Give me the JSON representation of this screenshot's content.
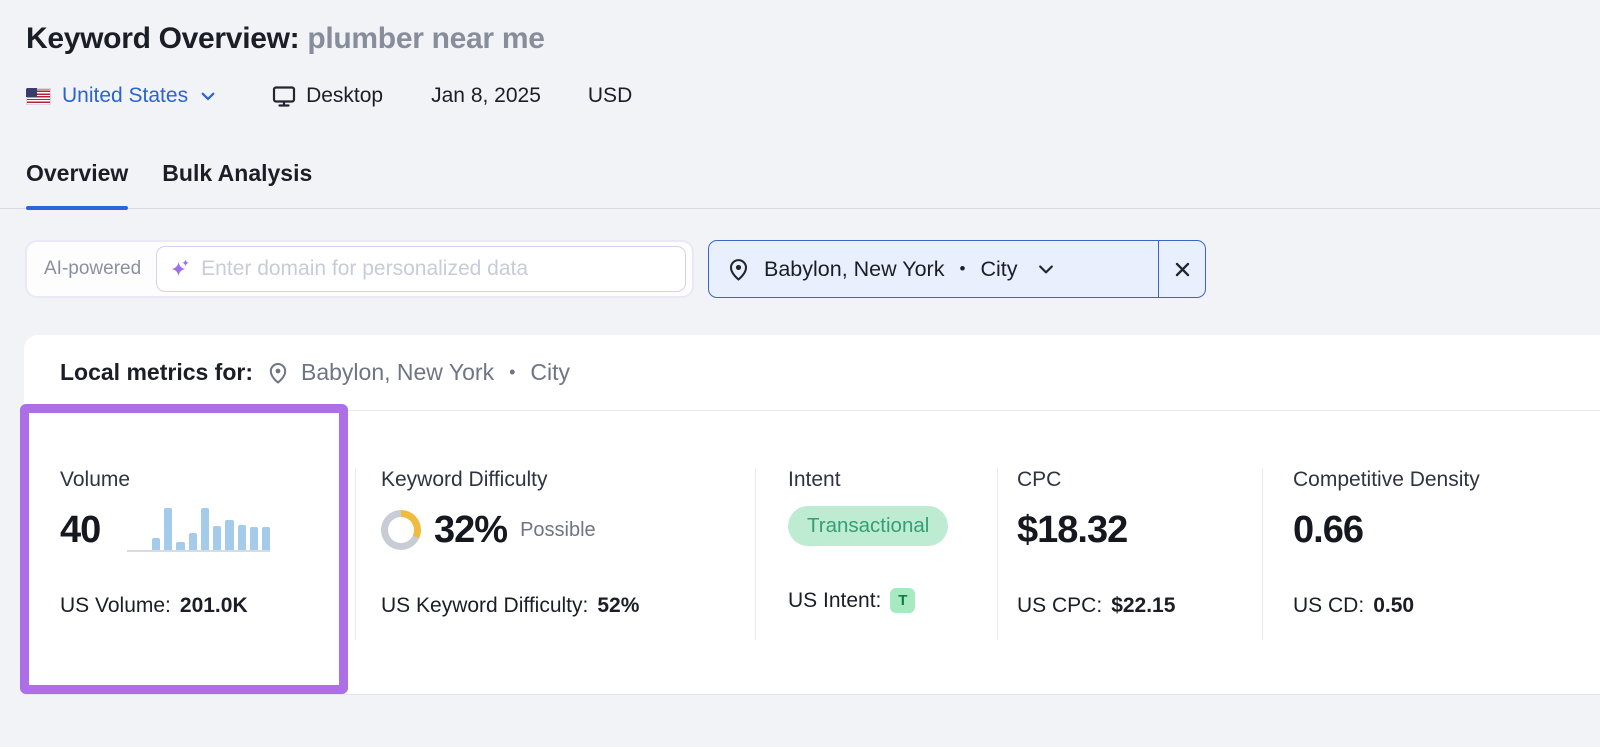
{
  "header": {
    "title_label": "Keyword Overview:",
    "keyword": "plumber near me",
    "country": "United States",
    "device": "Desktop",
    "date": "Jan 8, 2025",
    "currency": "USD"
  },
  "tabs": [
    {
      "label": "Overview"
    },
    {
      "label": "Bulk Analysis"
    }
  ],
  "toolbar": {
    "ai_badge": "AI-powered",
    "domain_input_placeholder": "Enter domain for personalized data",
    "location_chip": {
      "name": "Babylon, New York",
      "dot": "•",
      "scope": "City"
    }
  },
  "local_metrics_bar": {
    "label": "Local metrics for:",
    "location": "Babylon, New York",
    "dot": "•",
    "scope": "City"
  },
  "metrics": {
    "volume": {
      "label": "Volume",
      "value": "40",
      "us_label": "US Volume:",
      "us_value": "201.0K"
    },
    "keyword_difficulty": {
      "label": "Keyword Difficulty",
      "value": "32%",
      "qualifier": "Possible",
      "percent": 32,
      "us_label": "US Keyword Difficulty:",
      "us_value": "52%"
    },
    "intent": {
      "label": "Intent",
      "value": "Transactional",
      "us_label": "US Intent:",
      "us_badge": "T"
    },
    "cpc": {
      "label": "CPC",
      "value": "$18.32",
      "us_label": "US CPC:",
      "us_value": "$22.15"
    },
    "competitive_density": {
      "label": "Competitive Density",
      "value": "0.66",
      "us_label": "US CD:",
      "us_value": "0.50"
    }
  },
  "chart_data": {
    "type": "bar",
    "title": "Volume monthly trend sparkline",
    "values_pct": [
      0,
      0,
      28,
      100,
      18,
      40,
      100,
      58,
      72,
      60,
      55,
      55
    ],
    "ylim": [
      0,
      100
    ],
    "grid": false,
    "legend": false
  },
  "colors": {
    "accent_blue": "#2a63d4",
    "tab_underline": "#2b65d9",
    "chip_border": "#3a67c5",
    "chip_bg": "#e9effc",
    "highlight_purple": "#ad6fe6",
    "bar_blue": "#a4cbea",
    "gauge_yellow": "#f1ba41",
    "gauge_gray": "#c8cdd5",
    "intent_bg": "#bdecd2",
    "intent_text": "#359e73",
    "sparkle_purple": "#9d6fe8"
  }
}
